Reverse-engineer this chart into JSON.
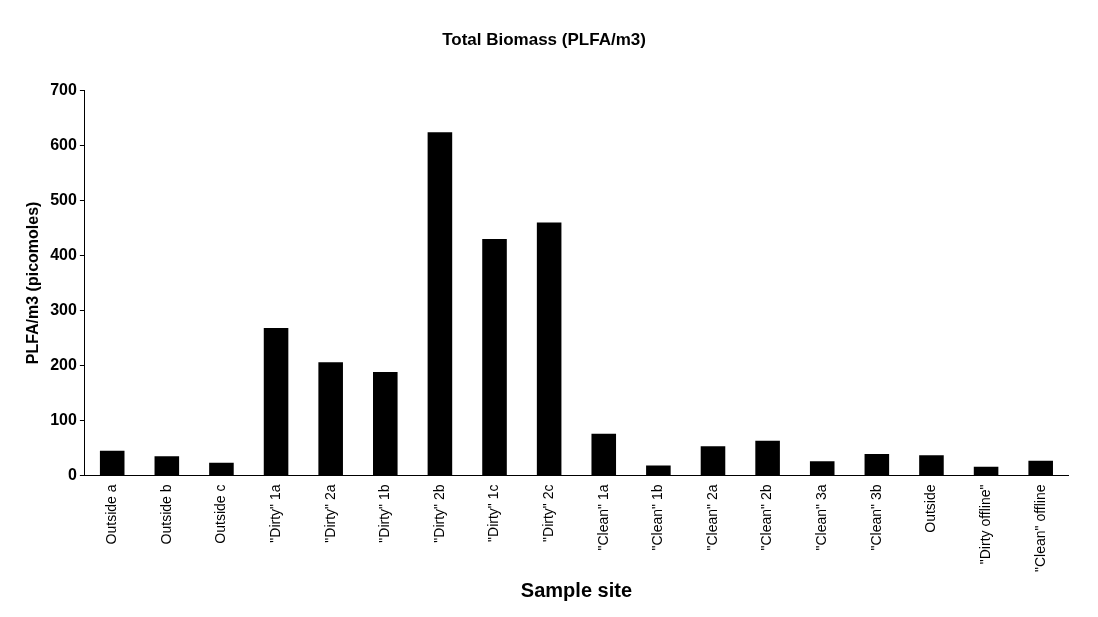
{
  "chart_data": {
    "type": "bar",
    "title": "Total Biomass (PLFA/m3)",
    "xlabel": "Sample site",
    "ylabel": "PLFA/m3 (picomoles)",
    "categories": [
      "Outside a",
      "Outside b",
      "Outside c",
      "\"Dirty\" 1a",
      "\"Dirty\" 2a",
      "\"Dirty\" 1b",
      "\"Dirty\" 2b",
      "\"Dirty\" 1c",
      "\"Dirty\" 2c",
      "\"Clean\" 1a",
      "\"Clean\" 1b",
      "\"Clean\" 2a",
      "\"Clean\" 2b",
      "\"Clean\" 3a",
      "\"Clean\" 3b",
      "Outside",
      "\"Dirty offline\"",
      "\"Clean\" offline"
    ],
    "values": [
      45,
      35,
      23,
      268,
      206,
      188,
      624,
      430,
      460,
      76,
      18,
      53,
      63,
      26,
      39,
      37,
      16,
      27
    ],
    "color": "#000000",
    "ylim": [
      0,
      700
    ],
    "yticks": [
      0,
      100,
      200,
      300,
      400,
      500,
      600,
      700
    ],
    "grid": false,
    "legend": false
  }
}
